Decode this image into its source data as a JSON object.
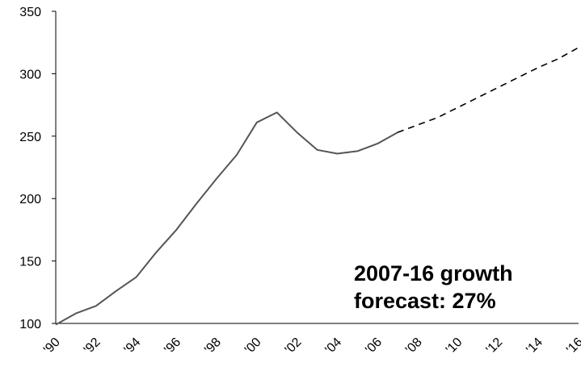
{
  "chart_data": {
    "type": "line",
    "title": "",
    "xlabel": "",
    "ylabel": "",
    "xlim": [
      1990,
      2016
    ],
    "ylim": [
      100,
      350
    ],
    "y_ticks": [
      "100",
      "150",
      "200",
      "250",
      "300",
      "350"
    ],
    "x_ticks": [
      "'90",
      "'92",
      "'94",
      "'96",
      "'98",
      "'00",
      "'02",
      "'04",
      "'06",
      "'08",
      "'10",
      "'12",
      "'14",
      "'16"
    ],
    "grid": false,
    "legend": "none",
    "series": [
      {
        "style": "solid",
        "color": "#555555",
        "x": [
          1990,
          1991,
          1992,
          1993,
          1994,
          1995,
          1996,
          1997,
          1998,
          1999,
          2000,
          2001,
          2002,
          2003,
          2004,
          2005,
          2006,
          2007
        ],
        "values": [
          99,
          108,
          114,
          126,
          137,
          157,
          175,
          196,
          216,
          235,
          261,
          269,
          253,
          239,
          236,
          238,
          244,
          253
        ]
      },
      {
        "style": "dashed",
        "color": "#000000",
        "x": [
          2007,
          2008,
          2009,
          2010,
          2011,
          2012,
          2013,
          2014,
          2015,
          2016
        ],
        "values": [
          253,
          259,
          265,
          273,
          281,
          289,
          297,
          305,
          312,
          321
        ]
      }
    ],
    "annotation": {
      "line1": "2007-16 growth",
      "line2": "forecast: 27%"
    }
  }
}
